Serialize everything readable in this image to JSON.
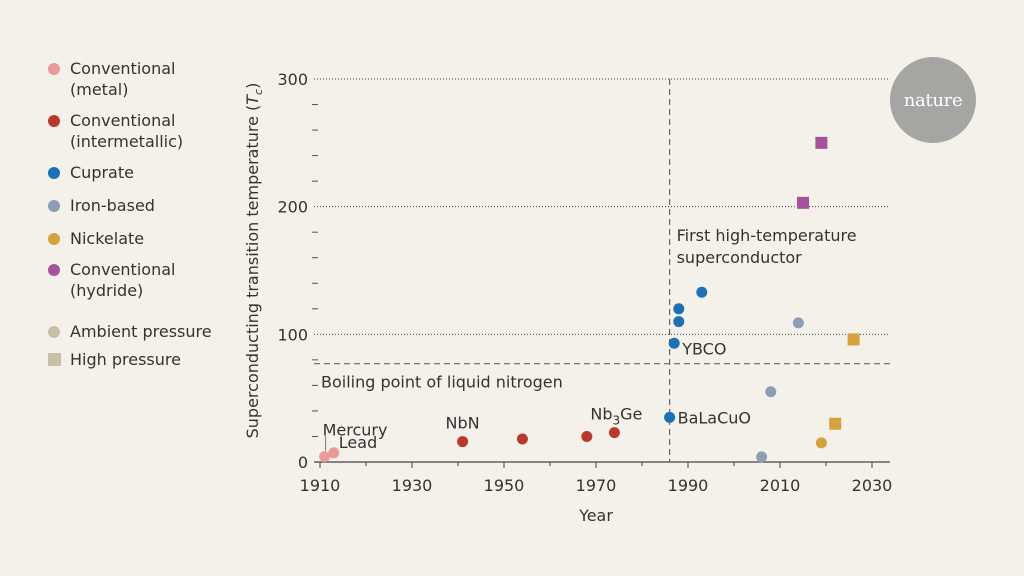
{
  "legend": {
    "categories": [
      {
        "label": "Conventional\n(metal)",
        "color": "#eb9a9c"
      },
      {
        "label": "Conventional\n(intermetallic)",
        "color": "#b83a2e"
      },
      {
        "label": "Cuprate",
        "color": "#1d70b2"
      },
      {
        "label": "Iron-based",
        "color": "#8e9db4"
      },
      {
        "label": "Nickelate",
        "color": "#d4a23f"
      },
      {
        "label": "Conventional\n(hydride)",
        "color": "#a5519b"
      }
    ],
    "pressure": [
      {
        "label": "Ambient pressure",
        "shape": "circle",
        "color": "#c6c0a6"
      },
      {
        "label": "High pressure",
        "shape": "square",
        "color": "#c6c0a6"
      }
    ]
  },
  "badge": "nature",
  "chart_data": {
    "type": "scatter",
    "xlabel": "Year",
    "ylabel": "Superconducting transition temperature (T",
    "ylabel_sub": "c",
    "ylabel_close": ")",
    "xlim": [
      1910,
      2032
    ],
    "ylim": [
      0,
      300
    ],
    "xticks": [
      1910,
      1930,
      1950,
      1970,
      1990,
      2010,
      2030
    ],
    "yticks_major": [
      0,
      100,
      200,
      300
    ],
    "ytick_labels": [
      "0",
      "100",
      "200",
      "300"
    ],
    "yticks_minor_step": 20,
    "grid_y": [
      100,
      200,
      300
    ],
    "points": [
      {
        "x": 1911,
        "y": 4.2,
        "cat": 0,
        "shape": "circle"
      },
      {
        "x": 1913,
        "y": 7.2,
        "cat": 0,
        "shape": "circle"
      },
      {
        "x": 1941,
        "y": 16,
        "cat": 1,
        "shape": "circle"
      },
      {
        "x": 1954,
        "y": 18,
        "cat": 1,
        "shape": "circle"
      },
      {
        "x": 1968,
        "y": 20,
        "cat": 1,
        "shape": "circle"
      },
      {
        "x": 1974,
        "y": 23,
        "cat": 1,
        "shape": "circle"
      },
      {
        "x": 1986,
        "y": 35,
        "cat": 2,
        "shape": "circle"
      },
      {
        "x": 1987,
        "y": 93,
        "cat": 2,
        "shape": "circle"
      },
      {
        "x": 1988,
        "y": 110,
        "cat": 2,
        "shape": "circle"
      },
      {
        "x": 1988,
        "y": 120,
        "cat": 2,
        "shape": "circle"
      },
      {
        "x": 1993,
        "y": 133,
        "cat": 2,
        "shape": "circle"
      },
      {
        "x": 2006,
        "y": 4,
        "cat": 3,
        "shape": "circle"
      },
      {
        "x": 2008,
        "y": 55,
        "cat": 3,
        "shape": "circle"
      },
      {
        "x": 2014,
        "y": 109,
        "cat": 3,
        "shape": "circle"
      },
      {
        "x": 2019,
        "y": 15,
        "cat": 4,
        "shape": "circle"
      },
      {
        "x": 2022,
        "y": 30,
        "cat": 4,
        "shape": "square"
      },
      {
        "x": 2026,
        "y": 96,
        "cat": 4,
        "shape": "square"
      },
      {
        "x": 2015,
        "y": 203,
        "cat": 5,
        "shape": "square"
      },
      {
        "x": 2019,
        "y": 250,
        "cat": 5,
        "shape": "square"
      }
    ],
    "reference_lines": [
      {
        "axis": "y",
        "value": 77,
        "label": "Boiling point of liquid nitrogen"
      },
      {
        "axis": "x",
        "value": 1986,
        "label": "First high-temperature\nsuperconductor"
      }
    ],
    "annotations": [
      {
        "text": "Mercury",
        "x": 1911,
        "y": 4.2,
        "type": "leader"
      },
      {
        "text": "Lead",
        "x": 1913,
        "y": 7.2
      },
      {
        "text": "NbN",
        "x": 1941,
        "y": 16
      },
      {
        "text": "Nb",
        "sub": "3",
        "tail": "Ge",
        "x": 1974,
        "y": 23
      },
      {
        "text": "BaLaCuO",
        "x": 1986,
        "y": 35
      },
      {
        "text": "YBCO",
        "x": 1987,
        "y": 93
      }
    ]
  }
}
